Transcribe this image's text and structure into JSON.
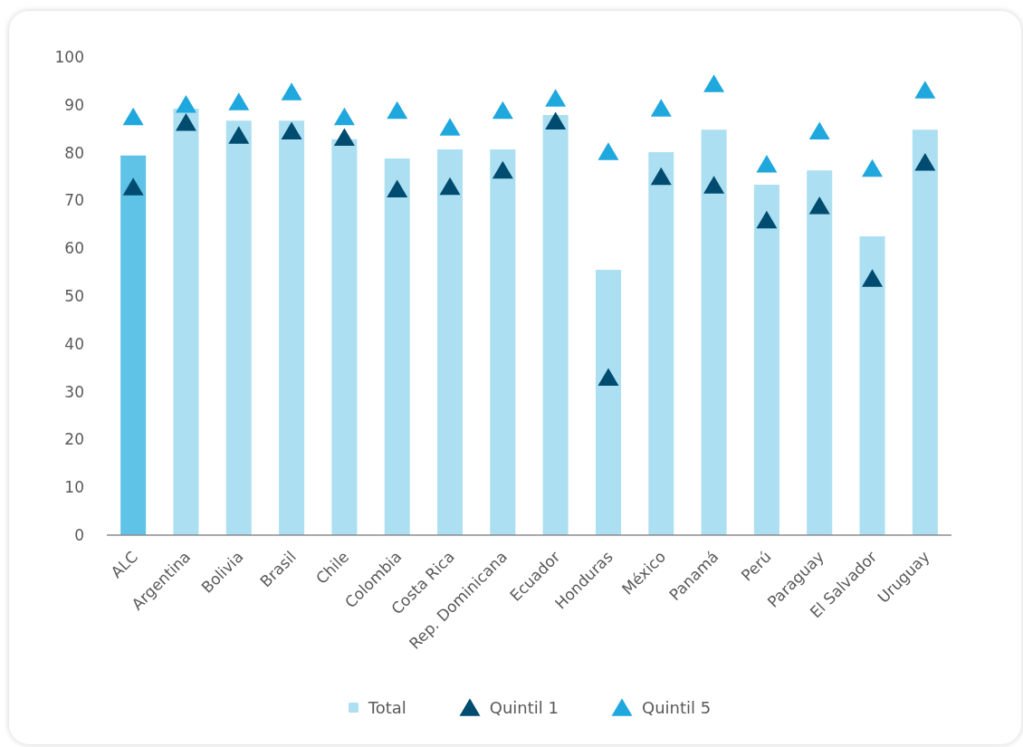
{
  "chart_data": {
    "type": "bar",
    "categories": [
      "ALC",
      "Argentina",
      "Bolivia",
      "Brasil",
      "Chile",
      "Colombia",
      "Costa Rica",
      "Rep. Dominicana",
      "Ecuador",
      "Honduras",
      "México",
      "Panamá",
      "Perú",
      "Paraguay",
      "El Salvador",
      "Uruguay"
    ],
    "series": [
      {
        "name": "Total",
        "color": "#acdff1",
        "colors": [
          "#5fc2e7",
          "#acdff1",
          "#acdff1",
          "#acdff1",
          "#acdff1",
          "#acdff1",
          "#acdff1",
          "#acdff1",
          "#acdff1",
          "#acdff1",
          "#acdff1",
          "#acdff1",
          "#acdff1",
          "#acdff1",
          "#acdff1",
          "#acdff1"
        ],
        "values": [
          79.4,
          89.2,
          86.7,
          86.7,
          82.8,
          78.8,
          80.7,
          80.7,
          87.9,
          55.5,
          80.1,
          84.8,
          73.3,
          76.3,
          62.5,
          84.8
        ]
      },
      {
        "name": "Quintil 1",
        "type": "scatter",
        "color": "#004c70",
        "values": [
          72.9,
          86.4,
          83.7,
          84.6,
          83.3,
          72.5,
          73.0,
          76.4,
          86.7,
          33.1,
          75.1,
          73.3,
          66.0,
          69.0,
          53.8,
          78.1
        ]
      },
      {
        "name": "Quintil 5",
        "type": "scatter",
        "color": "#1fa8dd",
        "values": [
          87.6,
          90.2,
          90.7,
          92.8,
          87.6,
          88.9,
          85.4,
          88.9,
          91.5,
          80.3,
          89.4,
          94.5,
          77.7,
          84.6,
          76.8,
          93.2
        ]
      }
    ],
    "ylim": [
      0,
      100
    ],
    "yticks": [
      0,
      10,
      20,
      30,
      40,
      50,
      60,
      70,
      80,
      90,
      100
    ],
    "marker": "triangle",
    "legend": "bottom"
  }
}
